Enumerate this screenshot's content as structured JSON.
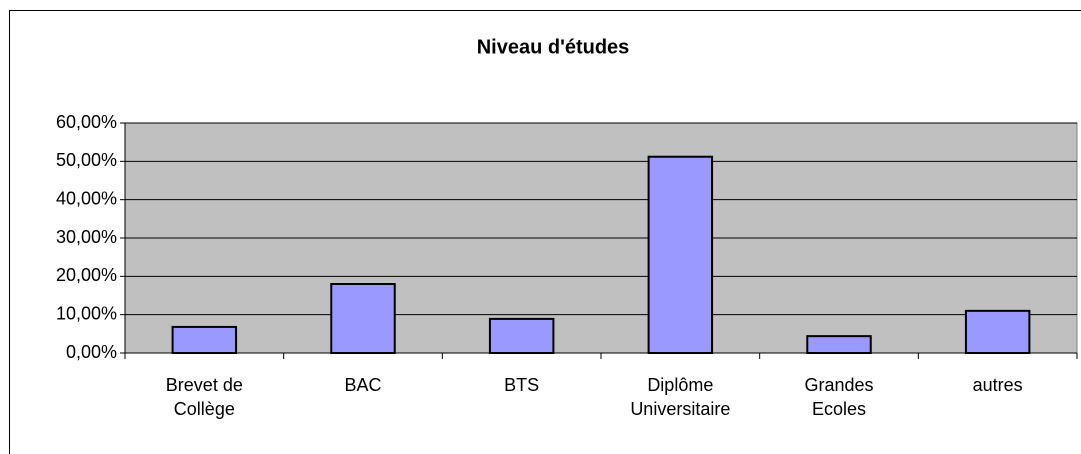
{
  "chart_data": {
    "type": "bar",
    "title": "Niveau d'études",
    "categories": [
      "Brevet de\nCollège",
      "BAC",
      "BTS",
      "Diplôme\nUniversitaire",
      "Grandes\nEcoles",
      "autres"
    ],
    "values": [
      6.8,
      18.0,
      8.9,
      51.2,
      4.4,
      11.0
    ],
    "color": "#9999ff",
    "ylim": [
      0,
      60
    ],
    "yticks": [
      {
        "value": 0,
        "label": "0,00%"
      },
      {
        "value": 10,
        "label": "10,00%"
      },
      {
        "value": 20,
        "label": "20,00%"
      },
      {
        "value": 30,
        "label": "30,00%"
      },
      {
        "value": 40,
        "label": "40,00%"
      },
      {
        "value": 50,
        "label": "50,00%"
      },
      {
        "value": 60,
        "label": "60,00%"
      }
    ],
    "grid": true
  }
}
